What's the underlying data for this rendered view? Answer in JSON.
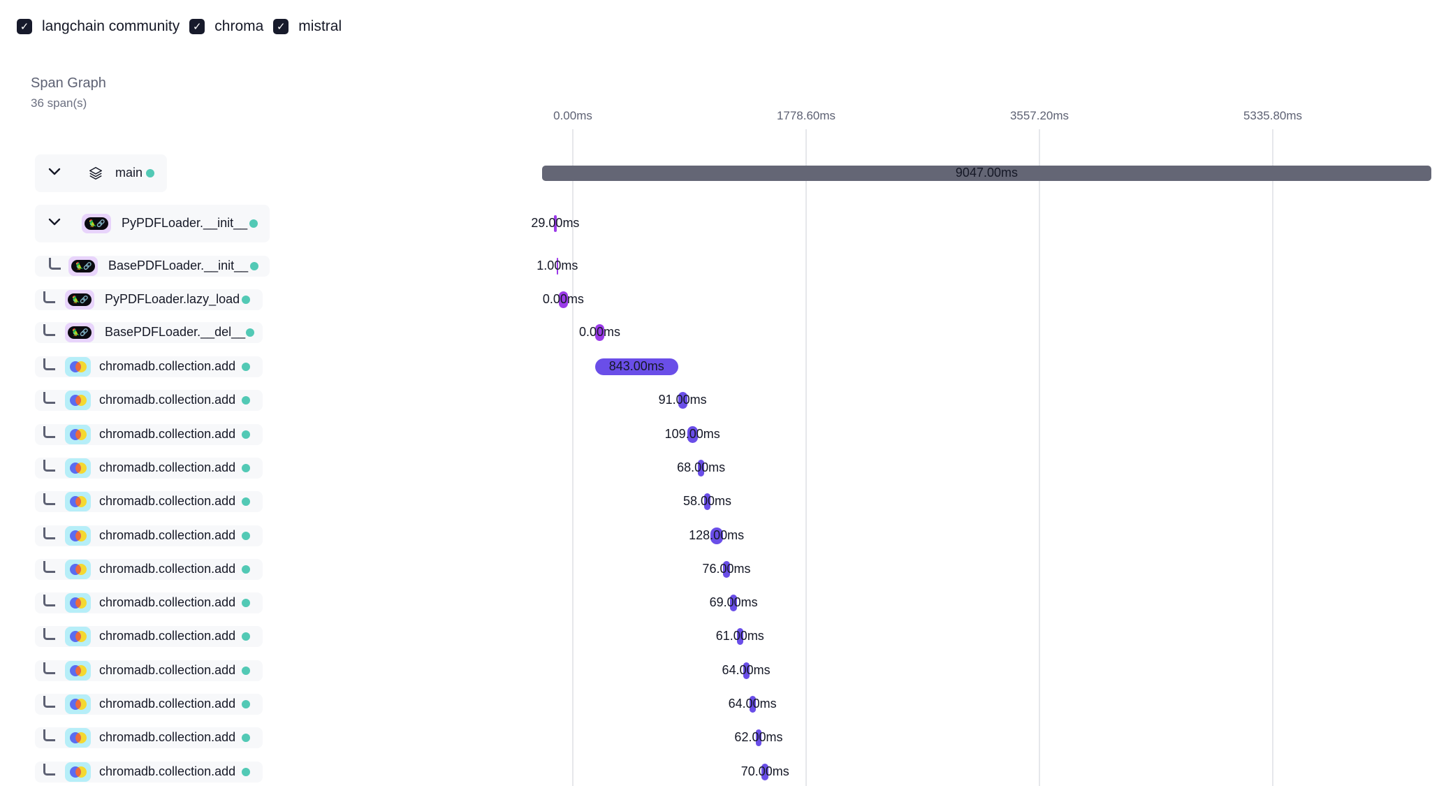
{
  "filters": [
    {
      "label": "langchain community",
      "checked": true
    },
    {
      "label": "chroma",
      "checked": true
    },
    {
      "label": "mistral",
      "checked": true
    }
  ],
  "span_graph": {
    "title": "Span Graph",
    "subtitle": "36 span(s)",
    "axis_ticks": [
      "0.00ms",
      "1778.60ms",
      "3557.20ms",
      "5335.80ms"
    ],
    "colors": {
      "main": "#646675",
      "langchain": "#9b3be8",
      "chroma": "#6a4ee8",
      "status_ok": "#52c9b5"
    },
    "spans": [
      {
        "name": "main",
        "icon": "layers-icon",
        "kind": "main",
        "expanded": true,
        "level": 0,
        "start_ms": 0,
        "duration_ms": 9047,
        "duration_label": "9047.00ms",
        "status": "ok"
      },
      {
        "name": "PyPDFLoader.__init__",
        "icon": "langchain-icon",
        "kind": "langchain",
        "expanded": true,
        "level": 1,
        "start_ms": 120,
        "duration_ms": 29,
        "duration_label": "29.00ms",
        "status": "ok"
      },
      {
        "name": "BasePDFLoader.__init__",
        "icon": "langchain-icon",
        "kind": "langchain",
        "level": 2,
        "start_ms": 148,
        "duration_ms": 1,
        "duration_label": "1.00ms",
        "status": "ok"
      },
      {
        "name": "PyPDFLoader.lazy_load",
        "icon": "langchain-icon",
        "kind": "langchain",
        "level": 1,
        "start_ms": 170,
        "duration_ms": 0,
        "duration_label": "0.00ms",
        "status": "ok"
      },
      {
        "name": "BasePDFLoader.__del__",
        "icon": "langchain-icon",
        "kind": "langchain",
        "level": 1,
        "start_ms": 540,
        "duration_ms": 0,
        "duration_label": "0.00ms",
        "status": "ok"
      },
      {
        "name": "chromadb.collection.add",
        "icon": "chroma-icon",
        "kind": "chroma",
        "level": 1,
        "start_ms": 540,
        "duration_ms": 843,
        "duration_label": "843.00ms",
        "status": "ok"
      },
      {
        "name": "chromadb.collection.add",
        "icon": "chroma-icon",
        "kind": "chroma",
        "level": 1,
        "start_ms": 1384,
        "duration_ms": 91,
        "duration_label": "91.00ms",
        "status": "ok"
      },
      {
        "name": "chromadb.collection.add",
        "icon": "chroma-icon",
        "kind": "chroma",
        "level": 1,
        "start_ms": 1475,
        "duration_ms": 109,
        "duration_label": "109.00ms",
        "status": "ok"
      },
      {
        "name": "chromadb.collection.add",
        "icon": "chroma-icon",
        "kind": "chroma",
        "level": 1,
        "start_ms": 1584,
        "duration_ms": 68,
        "duration_label": "68.00ms",
        "status": "ok"
      },
      {
        "name": "chromadb.collection.add",
        "icon": "chroma-icon",
        "kind": "chroma",
        "level": 1,
        "start_ms": 1652,
        "duration_ms": 58,
        "duration_label": "58.00ms",
        "status": "ok"
      },
      {
        "name": "chromadb.collection.add",
        "icon": "chroma-icon",
        "kind": "chroma",
        "level": 1,
        "start_ms": 1710,
        "duration_ms": 128,
        "duration_label": "128.00ms",
        "status": "ok"
      },
      {
        "name": "chromadb.collection.add",
        "icon": "chroma-icon",
        "kind": "chroma",
        "level": 1,
        "start_ms": 1838,
        "duration_ms": 76,
        "duration_label": "76.00ms",
        "status": "ok"
      },
      {
        "name": "chromadb.collection.add",
        "icon": "chroma-icon",
        "kind": "chroma",
        "level": 1,
        "start_ms": 1914,
        "duration_ms": 69,
        "duration_label": "69.00ms",
        "status": "ok"
      },
      {
        "name": "chromadb.collection.add",
        "icon": "chroma-icon",
        "kind": "chroma",
        "level": 1,
        "start_ms": 1983,
        "duration_ms": 61,
        "duration_label": "61.00ms",
        "status": "ok"
      },
      {
        "name": "chromadb.collection.add",
        "icon": "chroma-icon",
        "kind": "chroma",
        "level": 1,
        "start_ms": 2044,
        "duration_ms": 64,
        "duration_label": "64.00ms",
        "status": "ok"
      },
      {
        "name": "chromadb.collection.add",
        "icon": "chroma-icon",
        "kind": "chroma",
        "level": 1,
        "start_ms": 2108,
        "duration_ms": 64,
        "duration_label": "64.00ms",
        "status": "ok"
      },
      {
        "name": "chromadb.collection.add",
        "icon": "chroma-icon",
        "kind": "chroma",
        "level": 1,
        "start_ms": 2172,
        "duration_ms": 62,
        "duration_label": "62.00ms",
        "status": "ok"
      },
      {
        "name": "chromadb.collection.add",
        "icon": "chroma-icon",
        "kind": "chroma",
        "level": 1,
        "start_ms": 2234,
        "duration_ms": 70,
        "duration_label": "70.00ms",
        "status": "ok"
      }
    ]
  }
}
